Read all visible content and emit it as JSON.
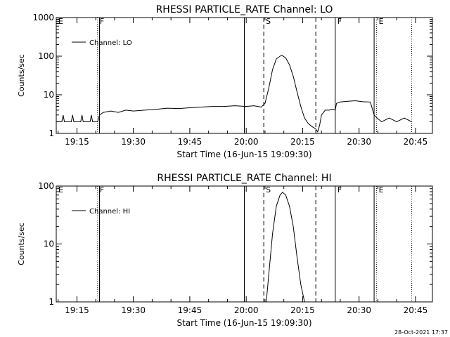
{
  "footer_date": "28-Oct-2021 17:37",
  "chart_data": [
    {
      "type": "line",
      "title": "RHESSI PARTICLE_RATE Channel: LO",
      "xlabel": "Start Time (16-Jun-15 19:09:30)",
      "ylabel": "Counts/sec",
      "yscale": "log",
      "ylim": [
        1,
        1000
      ],
      "yticks": [
        "1",
        "10",
        "100",
        "1000"
      ],
      "xlim": [
        "19:09:30",
        "20:49:30"
      ],
      "xticks": [
        "19:15",
        "19:30",
        "19:45",
        "20:00",
        "20:15",
        "20:30",
        "20:45"
      ],
      "legend": {
        "label": "Channel: LO",
        "position": "top-left"
      },
      "markers": [
        {
          "label": "E",
          "time": "19:09:30",
          "style": "dotted",
          "show_line": false
        },
        {
          "label": "F",
          "time": "19:20:30",
          "style": "dotted",
          "show_line": true
        },
        {
          "label": "",
          "time": "19:21:00",
          "style": "solid",
          "show_line": true
        },
        {
          "label": "",
          "time": "19:59:30",
          "style": "solid",
          "show_line": true
        },
        {
          "label": "S",
          "time": "20:04:40",
          "style": "dashed",
          "show_line": true
        },
        {
          "label": "",
          "time": "20:18:30",
          "style": "dashed",
          "show_line": true
        },
        {
          "label": "F",
          "time": "20:23:40",
          "style": "solid",
          "show_line": true
        },
        {
          "label": "",
          "time": "20:34:00",
          "style": "solid",
          "show_line": true
        },
        {
          "label": "E",
          "time": "20:34:40",
          "style": "dotted",
          "show_line": true
        },
        {
          "label": "",
          "time": "20:44:00",
          "style": "dotted",
          "show_line": true
        }
      ],
      "series": [
        {
          "name": "Channel: LO",
          "points": [
            [
              "19:09:30",
              2
            ],
            [
              "19:11:00",
              2
            ],
            [
              "19:11:20",
              3
            ],
            [
              "19:11:40",
              2
            ],
            [
              "19:13:30",
              2
            ],
            [
              "19:13:50",
              3
            ],
            [
              "19:14:10",
              2
            ],
            [
              "19:16:00",
              2
            ],
            [
              "19:16:20",
              3
            ],
            [
              "19:16:40",
              2
            ],
            [
              "19:18:30",
              2
            ],
            [
              "19:18:50",
              3
            ],
            [
              "19:19:10",
              2
            ],
            [
              "19:20:30",
              2
            ],
            [
              "19:21:00",
              3
            ],
            [
              "19:22:00",
              3.5
            ],
            [
              "19:24:00",
              3.8
            ],
            [
              "19:26:00",
              3.5
            ],
            [
              "19:28:00",
              4
            ],
            [
              "19:30:00",
              3.8
            ],
            [
              "19:33:00",
              4
            ],
            [
              "19:36:00",
              4.2
            ],
            [
              "19:39:00",
              4.5
            ],
            [
              "19:42:00",
              4.4
            ],
            [
              "19:45:00",
              4.6
            ],
            [
              "19:48:00",
              4.8
            ],
            [
              "19:51:00",
              5
            ],
            [
              "19:54:00",
              5
            ],
            [
              "19:57:00",
              5.2
            ],
            [
              "20:00:00",
              5
            ],
            [
              "20:02:00",
              5.2
            ],
            [
              "20:04:00",
              4.8
            ],
            [
              "20:05:00",
              6
            ],
            [
              "20:06:00",
              15
            ],
            [
              "20:07:00",
              45
            ],
            [
              "20:08:00",
              85
            ],
            [
              "20:09:00",
              100
            ],
            [
              "20:09:30",
              105
            ],
            [
              "20:10:30",
              90
            ],
            [
              "20:11:30",
              60
            ],
            [
              "20:12:30",
              30
            ],
            [
              "20:13:30",
              12
            ],
            [
              "20:14:30",
              5
            ],
            [
              "20:15:30",
              2.5
            ],
            [
              "20:16:30",
              1.8
            ],
            [
              "20:17:30",
              1.5
            ],
            [
              "20:18:30",
              1.3
            ],
            [
              "20:19:00",
              1.1
            ],
            [
              "20:19:30",
              1.6
            ],
            [
              "20:20:00",
              3
            ],
            [
              "20:21:00",
              4
            ],
            [
              "20:22:00",
              4
            ],
            [
              "20:23:00",
              4.2
            ],
            [
              "20:23:40",
              4
            ],
            [
              "20:24:00",
              6
            ],
            [
              "20:25:00",
              6.5
            ],
            [
              "20:27:00",
              6.8
            ],
            [
              "20:29:00",
              7
            ],
            [
              "20:31:00",
              6.6
            ],
            [
              "20:33:00",
              6.5
            ],
            [
              "20:34:00",
              3
            ],
            [
              "20:35:00",
              2.4
            ],
            [
              "20:36:00",
              2
            ],
            [
              "20:38:00",
              2.5
            ],
            [
              "20:40:00",
              2
            ],
            [
              "20:42:00",
              2.5
            ],
            [
              "20:44:00",
              2
            ]
          ]
        }
      ]
    },
    {
      "type": "line",
      "title": "RHESSI PARTICLE_RATE Channel: HI",
      "xlabel": "Start Time (16-Jun-15 19:09:30)",
      "ylabel": "Counts/sec",
      "yscale": "log",
      "ylim": [
        1,
        100
      ],
      "yticks": [
        "1",
        "10",
        "100"
      ],
      "xlim": [
        "19:09:30",
        "20:49:30"
      ],
      "xticks": [
        "19:15",
        "19:30",
        "19:45",
        "20:00",
        "20:15",
        "20:30",
        "20:45"
      ],
      "legend": {
        "label": "Channel: HI",
        "position": "top-left"
      },
      "markers": [
        {
          "label": "E",
          "time": "19:09:30",
          "style": "dotted",
          "show_line": false
        },
        {
          "label": "F",
          "time": "19:20:30",
          "style": "dotted",
          "show_line": true
        },
        {
          "label": "",
          "time": "19:21:00",
          "style": "solid",
          "show_line": true
        },
        {
          "label": "",
          "time": "19:59:30",
          "style": "solid",
          "show_line": true
        },
        {
          "label": "S",
          "time": "20:04:40",
          "style": "dashed",
          "show_line": true
        },
        {
          "label": "",
          "time": "20:18:30",
          "style": "dashed",
          "show_line": true
        },
        {
          "label": "F",
          "time": "20:23:40",
          "style": "solid",
          "show_line": true
        },
        {
          "label": "",
          "time": "20:34:00",
          "style": "solid",
          "show_line": true
        },
        {
          "label": "E",
          "time": "20:34:40",
          "style": "dotted",
          "show_line": true
        },
        {
          "label": "",
          "time": "20:44:00",
          "style": "dotted",
          "show_line": true
        }
      ],
      "series": [
        {
          "name": "Channel: HI",
          "points": [
            [
              "20:05:20",
              1
            ],
            [
              "20:06:00",
              3
            ],
            [
              "20:07:00",
              15
            ],
            [
              "20:08:00",
              45
            ],
            [
              "20:09:00",
              70
            ],
            [
              "20:09:40",
              78
            ],
            [
              "20:10:30",
              70
            ],
            [
              "20:11:30",
              45
            ],
            [
              "20:12:30",
              20
            ],
            [
              "20:13:30",
              6
            ],
            [
              "20:14:30",
              2
            ],
            [
              "20:15:30",
              1
            ]
          ]
        }
      ]
    }
  ]
}
